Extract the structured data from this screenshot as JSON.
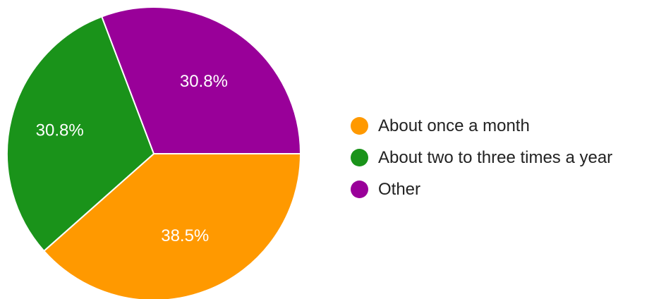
{
  "chart_data": {
    "type": "pie",
    "slices": [
      {
        "name": "About once a month",
        "value": 38.5,
        "label": "38.5%",
        "color": "#ff9900"
      },
      {
        "name": "About two to three times a year",
        "value": 30.8,
        "label": "30.8%",
        "color": "#1a931a"
      },
      {
        "name": "Other",
        "value": 30.8,
        "label": "30.8%",
        "color": "#990099"
      }
    ],
    "start_angle_deg": 0,
    "direction": "clockwise",
    "legend_position": "right"
  }
}
